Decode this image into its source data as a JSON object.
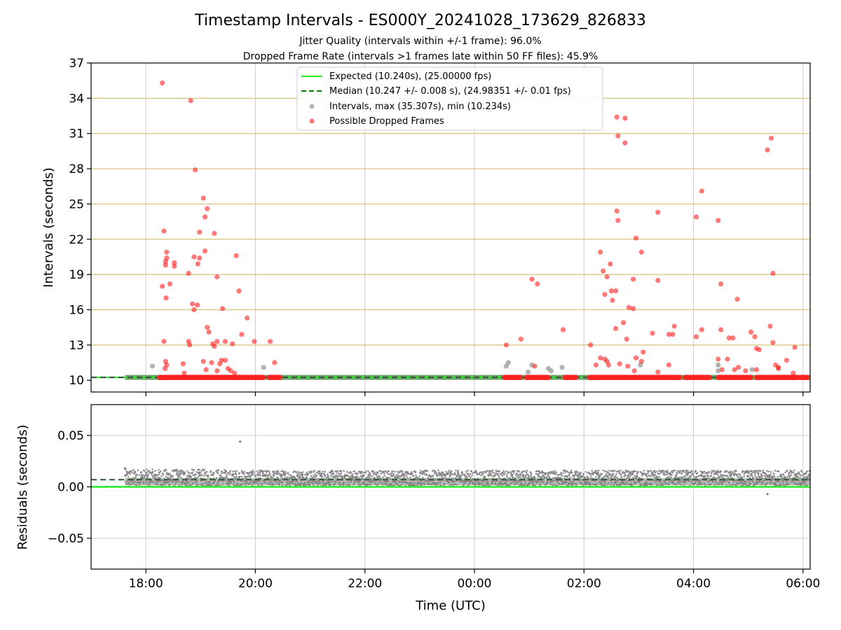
{
  "chart_data": {
    "title": "Timestamp Intervals - ES000Y_20241028_173629_826833",
    "subtitles": [
      "Jitter Quality (intervals within +/-1 frame): 96.0%",
      "Dropped Frame Rate (intervals >1 frames late within 50 FF files): 45.9%"
    ],
    "xlabel": "Time (UTC)",
    "x_ticks": [
      "18:00",
      "20:00",
      "22:00",
      "00:00",
      "02:00",
      "04:00",
      "06:00"
    ],
    "x_tick_hours": [
      18,
      20,
      22,
      24,
      26,
      28,
      30
    ],
    "x_range_hours": [
      17.0,
      30.13
    ],
    "colors": {
      "expected": "#22ee22",
      "median": "#0a7a0a",
      "intervals": "#9a9a9a",
      "dropped": "#ff2020",
      "residuals": "#808080",
      "gridline_gold": "#d9c27a",
      "grid": "#cccccc"
    },
    "panels": [
      {
        "type": "scatter",
        "ylabel": "Intervals (seconds)",
        "ylim": [
          9.0,
          37.0
        ],
        "y_ticks": [
          "10",
          "13",
          "16",
          "19",
          "22",
          "25",
          "28",
          "31",
          "34",
          "37"
        ],
        "y_tick_values": [
          10,
          13,
          16,
          19,
          22,
          25,
          28,
          31,
          34,
          37
        ],
        "gold_gridlines": [
          13,
          16,
          19,
          22,
          25,
          28,
          31,
          34
        ],
        "expected_value": 10.24,
        "median_value": 10.247,
        "legend": [
          "Expected (10.240s), (25.00000 fps)",
          "Median (10.247 +/- 0.008 s), (24.98351 +/- 0.01 fps)",
          "Intervals, max (35.307s), min (10.234s)",
          "Possible Dropped Frames"
        ],
        "baseline_segment_hours": [
          17.62,
          30.13
        ],
        "dropped_baseline_runs": [
          [
            18.25,
            19.55
          ],
          [
            19.55,
            20.15
          ],
          [
            20.25,
            20.45
          ],
          [
            24.55,
            24.85
          ],
          [
            24.95,
            25.35
          ],
          [
            25.65,
            25.85
          ],
          [
            26.1,
            27.75
          ],
          [
            27.85,
            28.3
          ],
          [
            28.45,
            29.05
          ],
          [
            29.15,
            29.9
          ],
          [
            29.95,
            30.1
          ]
        ],
        "interval_points": [
          [
            18.12,
            11.2
          ],
          [
            20.15,
            11.1
          ],
          [
            24.58,
            11.2
          ],
          [
            24.62,
            11.5
          ],
          [
            24.98,
            10.7
          ],
          [
            25.05,
            11.3
          ],
          [
            25.35,
            11.0
          ],
          [
            25.4,
            10.8
          ],
          [
            25.6,
            11.1
          ],
          [
            27.03,
            11.3
          ],
          [
            28.45,
            10.8
          ],
          [
            28.45,
            11.3
          ],
          [
            29.07,
            10.9
          ]
        ],
        "dropped_points": [
          [
            18.3,
            35.3
          ],
          [
            18.82,
            33.8
          ],
          [
            18.9,
            27.9
          ],
          [
            19.05,
            25.5
          ],
          [
            19.12,
            24.6
          ],
          [
            19.08,
            23.9
          ],
          [
            18.33,
            22.7
          ],
          [
            19.25,
            22.5
          ],
          [
            18.98,
            22.6
          ],
          [
            18.38,
            20.9
          ],
          [
            18.38,
            20.4
          ],
          [
            18.36,
            20.1
          ],
          [
            18.36,
            19.8
          ],
          [
            18.52,
            20.0
          ],
          [
            18.52,
            19.7
          ],
          [
            18.88,
            20.5
          ],
          [
            18.98,
            20.4
          ],
          [
            18.95,
            19.9
          ],
          [
            19.08,
            21.0
          ],
          [
            18.78,
            19.1
          ],
          [
            19.65,
            20.6
          ],
          [
            18.44,
            18.2
          ],
          [
            18.3,
            18.0
          ],
          [
            19.3,
            18.8
          ],
          [
            19.7,
            17.6
          ],
          [
            18.37,
            17.0
          ],
          [
            18.85,
            16.5
          ],
          [
            18.88,
            16.0
          ],
          [
            18.94,
            16.4
          ],
          [
            19.4,
            16.1
          ],
          [
            19.85,
            15.3
          ],
          [
            19.12,
            14.5
          ],
          [
            19.15,
            14.1
          ],
          [
            19.75,
            13.9
          ],
          [
            18.33,
            13.3
          ],
          [
            18.78,
            13.3
          ],
          [
            18.8,
            13.0
          ],
          [
            19.22,
            13.1
          ],
          [
            19.25,
            12.9
          ],
          [
            19.3,
            13.3
          ],
          [
            19.45,
            13.3
          ],
          [
            19.58,
            13.1
          ],
          [
            19.98,
            13.3
          ],
          [
            20.27,
            13.3
          ],
          [
            19.05,
            11.6
          ],
          [
            19.2,
            11.5
          ],
          [
            19.35,
            11.4
          ],
          [
            19.38,
            11.7
          ],
          [
            19.45,
            11.7
          ],
          [
            19.5,
            11.0
          ],
          [
            19.55,
            10.8
          ],
          [
            18.36,
            11.6
          ],
          [
            18.38,
            11.3
          ],
          [
            18.35,
            11.0
          ],
          [
            18.68,
            11.4
          ],
          [
            19.1,
            10.9
          ],
          [
            18.7,
            10.6
          ],
          [
            20.35,
            11.5
          ],
          [
            19.3,
            10.8
          ],
          [
            19.62,
            10.6
          ],
          [
            24.58,
            13.0
          ],
          [
            24.85,
            13.5
          ],
          [
            25.05,
            18.6
          ],
          [
            25.15,
            18.2
          ],
          [
            25.1,
            11.2
          ],
          [
            25.62,
            14.3
          ],
          [
            26.6,
            32.4
          ],
          [
            26.75,
            32.3
          ],
          [
            26.62,
            30.8
          ],
          [
            26.75,
            30.2
          ],
          [
            26.6,
            24.4
          ],
          [
            26.62,
            23.6
          ],
          [
            26.3,
            20.9
          ],
          [
            26.35,
            19.3
          ],
          [
            26.48,
            19.9
          ],
          [
            26.42,
            18.8
          ],
          [
            26.5,
            17.6
          ],
          [
            26.58,
            17.6
          ],
          [
            26.38,
            17.3
          ],
          [
            26.52,
            16.8
          ],
          [
            26.82,
            16.2
          ],
          [
            26.9,
            16.1
          ],
          [
            26.95,
            22.1
          ],
          [
            27.05,
            20.9
          ],
          [
            26.9,
            18.6
          ],
          [
            26.58,
            14.4
          ],
          [
            26.72,
            14.9
          ],
          [
            27.35,
            24.3
          ],
          [
            27.35,
            18.5
          ],
          [
            27.65,
            14.6
          ],
          [
            27.55,
            13.9
          ],
          [
            27.62,
            13.9
          ],
          [
            26.78,
            13.5
          ],
          [
            26.12,
            13.0
          ],
          [
            27.25,
            14.0
          ],
          [
            27.08,
            12.4
          ],
          [
            26.22,
            11.3
          ],
          [
            26.3,
            11.9
          ],
          [
            26.38,
            11.8
          ],
          [
            26.42,
            11.6
          ],
          [
            26.45,
            11.3
          ],
          [
            26.65,
            11.4
          ],
          [
            26.8,
            11.2
          ],
          [
            26.95,
            11.9
          ],
          [
            27.05,
            11.6
          ],
          [
            26.92,
            10.8
          ],
          [
            27.35,
            10.7
          ],
          [
            27.55,
            11.3
          ],
          [
            28.05,
            23.9
          ],
          [
            28.15,
            26.1
          ],
          [
            28.45,
            23.6
          ],
          [
            28.5,
            18.2
          ],
          [
            28.05,
            13.7
          ],
          [
            28.15,
            14.3
          ],
          [
            28.5,
            14.3
          ],
          [
            28.65,
            13.6
          ],
          [
            28.72,
            13.6
          ],
          [
            28.8,
            16.9
          ],
          [
            28.45,
            11.8
          ],
          [
            28.52,
            10.9
          ],
          [
            28.62,
            11.8
          ],
          [
            28.75,
            10.9
          ],
          [
            28.82,
            11.1
          ],
          [
            28.95,
            10.8
          ],
          [
            29.15,
            10.9
          ],
          [
            29.05,
            14.1
          ],
          [
            29.12,
            13.7
          ],
          [
            29.15,
            12.7
          ],
          [
            29.2,
            12.6
          ],
          [
            29.35,
            29.6
          ],
          [
            29.42,
            30.6
          ],
          [
            29.45,
            19.1
          ],
          [
            29.4,
            14.6
          ],
          [
            29.45,
            13.2
          ],
          [
            29.5,
            11.3
          ],
          [
            29.55,
            11.0
          ],
          [
            29.55,
            11.1
          ],
          [
            29.7,
            11.7
          ],
          [
            29.85,
            12.8
          ],
          [
            29.82,
            10.6
          ]
        ]
      },
      {
        "type": "scatter",
        "ylabel": "Residuals (seconds)",
        "ylim": [
          -0.08,
          0.08
        ],
        "y_ticks": [
          "−0.05",
          "0.00",
          "0.05"
        ],
        "y_tick_values": [
          -0.05,
          0.0,
          0.05
        ],
        "expected_value": 0.0,
        "median_value": 0.007,
        "outliers": [
          [
            19.72,
            0.044
          ],
          [
            29.35,
            -0.007
          ],
          [
            17.62,
            0.018
          ]
        ],
        "noise_band": {
          "x_start_hours": 17.62,
          "x_end_hours": 30.13,
          "transition_hours": 19.45,
          "early_min": 0.0,
          "early_max": 0.017,
          "late_min": 0.001,
          "late_max": 0.016
        }
      }
    ]
  }
}
